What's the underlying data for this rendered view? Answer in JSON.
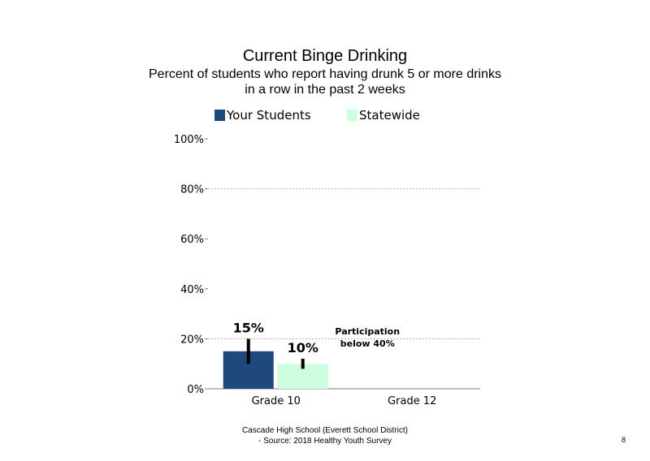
{
  "chart_data": {
    "type": "bar",
    "title": "Current  Binge Drinking",
    "subtitle_line1": "Percent of students who report having drunk 5 or more drinks",
    "subtitle_line2": "in a row in the past 2 weeks",
    "categories": [
      "Grade 10",
      "Grade 12"
    ],
    "series": [
      {
        "name": "Your Students",
        "color": "#1F497D",
        "values": [
          15,
          null
        ],
        "labels": [
          "15%",
          ""
        ],
        "error": [
          [
            10,
            20
          ],
          null
        ]
      },
      {
        "name": "Statewide",
        "color": "#CCFFDD",
        "values": [
          10,
          null
        ],
        "labels": [
          "10%",
          ""
        ],
        "error": [
          [
            8,
            12
          ],
          null
        ]
      }
    ],
    "ylim": [
      0,
      100
    ],
    "yticks": [
      0,
      20,
      40,
      60,
      80,
      100
    ],
    "ytick_labels": [
      "0%",
      "20%",
      "40%",
      "60%",
      "80%",
      "100%"
    ],
    "gridlines": [
      20,
      80
    ],
    "legend_position": "top",
    "annotation": {
      "line1": "Participation",
      "line2": "below 40%",
      "category": "Grade 12"
    }
  },
  "footer": {
    "line1": "Cascade High School (Everett School District)",
    "line2": "- Source: 2018 Healthy  Youth Survey"
  },
  "page_number": "8"
}
